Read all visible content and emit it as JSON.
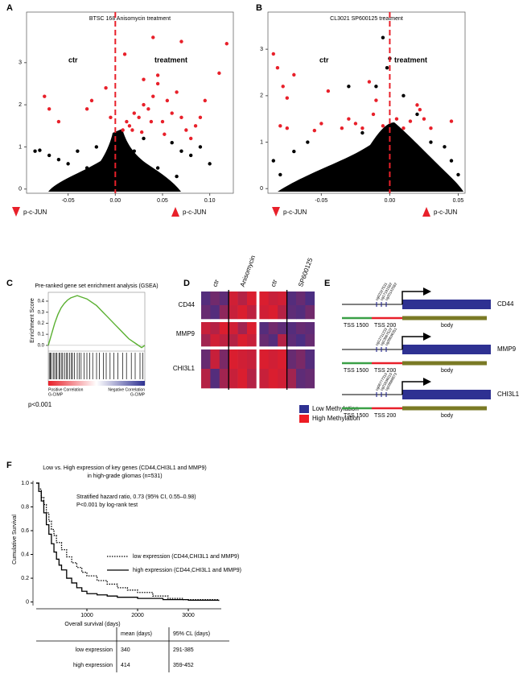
{
  "panel_labels": [
    "A",
    "B",
    "C",
    "D",
    "E",
    "F"
  ],
  "chart_data": [
    {
      "type": "scatter",
      "title": "BTSC 168 Anisomycin treatment",
      "xlim": [
        -0.094,
        0.125
      ],
      "ylim": [
        -0.1,
        4.2
      ],
      "xticks": [
        -0.05,
        {
          "value": 0,
          "label": "0.00"
        },
        0.05,
        {
          "value": 0.1,
          "label": "0.10"
        }
      ],
      "yticks": [
        0,
        1,
        2,
        3
      ],
      "vline": 0,
      "vline_color": "#e8202a",
      "annotations": [
        "ctr",
        "treatment"
      ],
      "markers": [
        "p-c-JUN",
        "p-c-JUN"
      ],
      "series": [
        {
          "color": "#000000",
          "x": [
            -0.085,
            -0.08,
            -0.07,
            -0.06,
            -0.05,
            -0.04,
            -0.03,
            0.06,
            0.07,
            0.08,
            0.09,
            0.1,
            0.065,
            -0.02,
            0.03,
            0.045,
            0.02,
            0.01,
            -0.01,
            0.05
          ],
          "values": [
            0.9,
            0.92,
            0.8,
            0.7,
            0.6,
            0.9,
            0.5,
            1.1,
            0.9,
            0.8,
            1.0,
            0.6,
            0.3,
            1.0,
            1.2,
            0.5,
            0.9,
            1.1,
            0.3,
            0.2
          ]
        },
        {
          "color": "#e8202a",
          "x": [
            0.008,
            0.012,
            0.015,
            0.02,
            0.025,
            0.03,
            0.035,
            0.04,
            0.045,
            0.05,
            0.055,
            0.06,
            0.065,
            0.07,
            0.075,
            0.08,
            0.085,
            0.09,
            0.04,
            0.07,
            0.118,
            0.11,
            0.045,
            0.03,
            0.018,
            0.028,
            0.038,
            0.052,
            -0.03,
            -0.025,
            -0.07,
            -0.075,
            -0.06,
            -0.01,
            -0.005,
            0.01,
            0.095
          ],
          "values": [
            1.4,
            1.6,
            1.5,
            1.8,
            1.7,
            2.0,
            1.9,
            2.2,
            2.5,
            1.6,
            2.1,
            1.8,
            2.3,
            1.7,
            1.4,
            1.2,
            1.5,
            1.7,
            3.6,
            3.5,
            3.45,
            2.75,
            2.7,
            2.6,
            1.4,
            1.35,
            1.6,
            1.3,
            1.9,
            2.1,
            1.9,
            2.2,
            1.6,
            2.4,
            1.7,
            3.2,
            2.1
          ]
        }
      ]
    },
    {
      "type": "scatter",
      "title": "CL3021 SP600125 treatment",
      "xlim": [
        -0.089,
        0.055
      ],
      "ylim": [
        -0.1,
        3.8
      ],
      "xticks": [
        -0.05,
        {
          "value": 0,
          "label": "0.00"
        },
        0.05
      ],
      "yticks": [
        0,
        1,
        2,
        3
      ],
      "vline": 0,
      "vline_color": "#e8202a",
      "annotations": [
        "ctr",
        "treatment"
      ],
      "markers": [
        "p-c-JUN",
        "p-c-JUN"
      ],
      "series": [
        {
          "color": "#000000",
          "x": [
            -0.005,
            -0.002,
            0.0,
            -0.03,
            -0.01,
            0.01,
            -0.06,
            -0.07,
            -0.085,
            0.03,
            0.04,
            0.045,
            0.05,
            -0.08,
            0.02,
            -0.02
          ],
          "values": [
            3.25,
            2.6,
            2.8,
            2.2,
            2.2,
            2.0,
            1.0,
            0.8,
            0.6,
            1.0,
            0.9,
            0.6,
            0.3,
            0.3,
            1.6,
            1.2
          ]
        },
        {
          "color": "#e8202a",
          "x": [
            -0.085,
            -0.082,
            -0.078,
            -0.07,
            -0.075,
            -0.08,
            -0.075,
            -0.05,
            -0.055,
            -0.03,
            -0.035,
            -0.025,
            -0.02,
            -0.015,
            -0.012,
            -0.005,
            0.005,
            0.01,
            0.015,
            0.02,
            0.022,
            0.025,
            0.03,
            0.045,
            -0.045,
            -0.01
          ],
          "values": [
            2.9,
            2.6,
            2.2,
            2.45,
            1.95,
            1.35,
            1.3,
            1.4,
            1.25,
            1.5,
            1.3,
            1.4,
            1.3,
            2.3,
            1.6,
            1.35,
            1.5,
            1.3,
            1.45,
            1.8,
            1.7,
            1.5,
            1.3,
            1.45,
            2.1,
            1.9
          ]
        }
      ]
    },
    {
      "type": "line",
      "title": "Pre-ranked gene set enrichment analysis (GSEA)",
      "ylabel": "Enrichment Score",
      "ylim": [
        -0.03,
        0.48
      ],
      "yticks": [
        {
          "value": 0,
          "label": "0.0"
        },
        0.1,
        0.2,
        0.3,
        0.4
      ],
      "color": "#5ab031",
      "values": [
        0,
        0.1,
        0.2,
        0.28,
        0.34,
        0.38,
        0.41,
        0.43,
        0.44,
        0.45,
        0.44,
        0.43,
        0.42,
        0.4,
        0.38,
        0.36,
        0.33,
        0.3,
        0.27,
        0.24,
        0.21,
        0.18,
        0.15,
        0.12,
        0.09,
        0.06,
        0.04,
        0.02,
        0.0,
        -0.02,
        0.0
      ],
      "xlim": [
        0,
        1
      ],
      "hits": [
        0.01,
        0.02,
        0.03,
        0.05,
        0.06,
        0.08,
        0.09,
        0.11,
        0.12,
        0.14,
        0.15,
        0.17,
        0.19,
        0.2,
        0.22,
        0.24,
        0.25,
        0.27,
        0.3,
        0.32,
        0.34,
        0.37,
        0.4,
        0.43,
        0.46,
        0.5,
        0.53,
        0.57,
        0.6,
        0.64,
        0.68,
        0.72,
        0.77,
        0.81,
        0.86,
        0.9,
        0.95,
        0.98
      ],
      "annotations": [
        "Positive Correlation",
        "G-CIMP",
        "Negative Correlation",
        "G-CIMP",
        "p<0.001"
      ]
    },
    {
      "type": "step",
      "title": [
        "Low vs. High expression of key genes (CD44,CHI3L1 and MMP9)",
        "in high-grade gliomas (n=531)"
      ],
      "annotations": [
        "Stratified hazard ratio, 0.73 (95% CI, 0.55–0.98)",
        "P<0.001 by log-rank test"
      ],
      "xlabel": "Overall survival (days)",
      "ylabel": "Cumulative Survival",
      "xlim": [
        0,
        3650
      ],
      "ylim": [
        -0.03,
        1.02
      ],
      "xticks": [
        1000,
        2000,
        3000
      ],
      "yticks": [
        0,
        0.2,
        0.4,
        0.6,
        0.8,
        {
          "value": 1,
          "label": "1.0"
        }
      ],
      "series": [
        {
          "name": "low expression (CD44,CHI3L1 and MMP9)",
          "color": "#000000",
          "line_style": "dotted",
          "x": [
            0,
            50,
            100,
            150,
            200,
            250,
            300,
            350,
            400,
            500,
            600,
            700,
            800,
            900,
            1000,
            1200,
            1400,
            1600,
            1800,
            2000,
            2300,
            2600,
            2900,
            3600
          ],
          "values": [
            1.0,
            0.95,
            0.88,
            0.82,
            0.75,
            0.68,
            0.61,
            0.56,
            0.5,
            0.44,
            0.38,
            0.33,
            0.29,
            0.25,
            0.22,
            0.18,
            0.15,
            0.12,
            0.1,
            0.08,
            0.05,
            0.03,
            0.02,
            0.01
          ]
        },
        {
          "name": "high expression (CD44,CHI3L1 and MMP9)",
          "color": "#000000",
          "line_style": "solid",
          "x": [
            0,
            50,
            100,
            150,
            200,
            250,
            300,
            350,
            400,
            450,
            500,
            600,
            700,
            800,
            900,
            1000,
            1200,
            1400,
            1600,
            2000,
            2500,
            3000,
            3600
          ],
          "values": [
            1.0,
            0.93,
            0.85,
            0.75,
            0.65,
            0.57,
            0.49,
            0.42,
            0.36,
            0.31,
            0.27,
            0.2,
            0.16,
            0.12,
            0.09,
            0.07,
            0.06,
            0.05,
            0.04,
            0.03,
            0.02,
            0.015,
            0.01
          ]
        }
      ]
    }
  ],
  "heatmap": {
    "columns": [
      "ctr",
      "Anisomycin",
      "ctr",
      "SP600125"
    ],
    "legend": [
      "Low Methylation",
      "High Methylation"
    ],
    "colorscale": [
      "#2e3192",
      "#ed1c24"
    ],
    "zlim": [
      0,
      1
    ],
    "rows": [
      {
        "name": "CD44",
        "levels": [
          [
            0.2,
            0.35,
            0.25,
            0.85,
            0.7,
            0.9,
            0.9,
            0.8,
            0.85,
            0.2,
            0.3,
            0.15
          ],
          [
            0.3,
            0.2,
            0.5,
            0.8,
            0.9,
            0.75,
            0.85,
            0.9,
            0.7,
            0.25,
            0.2,
            0.35
          ]
        ]
      },
      {
        "name": "MMP9",
        "levels": [
          [
            0.8,
            0.7,
            0.9,
            0.85,
            0.6,
            0.9,
            0.2,
            0.35,
            0.25,
            0.2,
            0.3,
            0.25
          ],
          [
            0.6,
            0.85,
            0.75,
            0.7,
            0.9,
            0.8,
            0.3,
            0.2,
            0.7,
            0.25,
            0.15,
            0.3
          ]
        ]
      },
      {
        "name": "CHI3L1",
        "levels": [
          [
            0.3,
            0.8,
            0.4,
            0.9,
            0.85,
            0.8,
            0.9,
            0.85,
            0.9,
            0.3,
            0.4,
            0.2
          ],
          [
            0.7,
            0.2,
            0.6,
            0.8,
            0.9,
            0.7,
            0.8,
            0.9,
            0.85,
            0.6,
            0.25,
            0.3
          ]
        ]
      }
    ]
  },
  "gene_diagrams": {
    "regions": [
      "TSS 1500",
      "TSS 200",
      "body"
    ],
    "genes": [
      {
        "name": "CD44",
        "probes": [
          "cg02327531",
          "cg17191582",
          "cg20142082"
        ]
      },
      {
        "name": "MMP9",
        "probes": [
          "cg12711233",
          "cg13667522",
          "cg26636351"
        ]
      },
      {
        "name": "CHI3L1",
        "probes": [
          "cg06777310",
          "cg21636015",
          "cg16688873"
        ]
      }
    ]
  },
  "table": {
    "header": [
      "mean (days)",
      "95% CL (days)"
    ],
    "rows": [
      [
        "low expression",
        340,
        "291-385"
      ],
      [
        "high expression",
        414,
        "359-452"
      ]
    ]
  }
}
